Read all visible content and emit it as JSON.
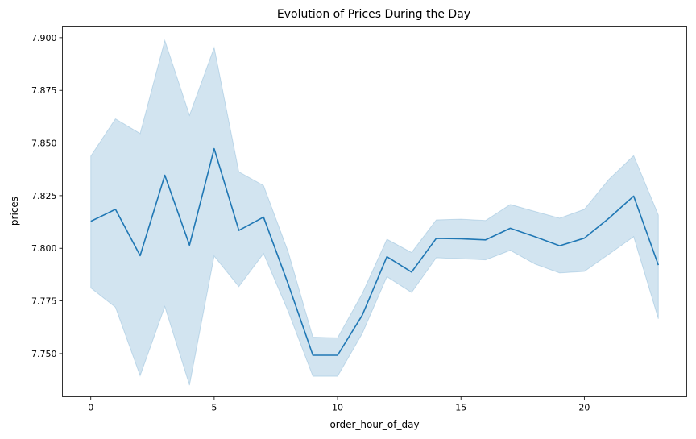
{
  "chart_data": {
    "type": "line",
    "title": "Evolution of Prices During the Day",
    "xlabel": "order_hour_of_day",
    "ylabel": "prices",
    "xlim": [
      -1.15,
      24.15
    ],
    "ylim": [
      7.7295,
      7.9055
    ],
    "xticks": [
      0,
      5,
      10,
      15,
      20
    ],
    "yticks": [
      7.75,
      7.775,
      7.8,
      7.825,
      7.85,
      7.875,
      7.9
    ],
    "grid": false,
    "legend": "none",
    "colors": {
      "line": "#1f77b4",
      "band": "#1f77b4"
    },
    "series": [
      {
        "x": [
          0,
          1,
          2,
          3,
          4,
          5,
          6,
          7,
          8,
          9,
          10,
          11,
          12,
          13,
          14,
          15,
          16,
          17,
          18,
          19,
          20,
          21,
          22,
          23
        ],
        "values": [
          7.8128,
          7.8185,
          7.7965,
          7.8347,
          7.8015,
          7.8473,
          7.8085,
          7.8148,
          7.783,
          7.7492,
          7.7492,
          7.7682,
          7.796,
          7.7887,
          7.8047,
          7.8045,
          7.804,
          7.8095,
          7.8055,
          7.8012,
          7.8048,
          7.8143,
          7.8248,
          7.792
        ],
        "ci_lower": [
          7.7812,
          7.772,
          7.7395,
          7.7723,
          7.735,
          7.7963,
          7.7818,
          7.7975,
          7.77,
          7.7392,
          7.7392,
          7.7595,
          7.7865,
          7.779,
          7.7955,
          7.795,
          7.7945,
          7.799,
          7.7925,
          7.7883,
          7.789,
          7.7972,
          7.8055,
          7.7665
        ],
        "ci_upper": [
          7.8438,
          7.8615,
          7.8545,
          7.8987,
          7.8632,
          7.8953,
          7.8363,
          7.8298,
          7.7983,
          7.7578,
          7.7575,
          7.7785,
          7.8043,
          7.798,
          7.8135,
          7.8138,
          7.8132,
          7.8208,
          7.8175,
          7.8143,
          7.8185,
          7.8328,
          7.844,
          7.8158
        ]
      }
    ]
  }
}
